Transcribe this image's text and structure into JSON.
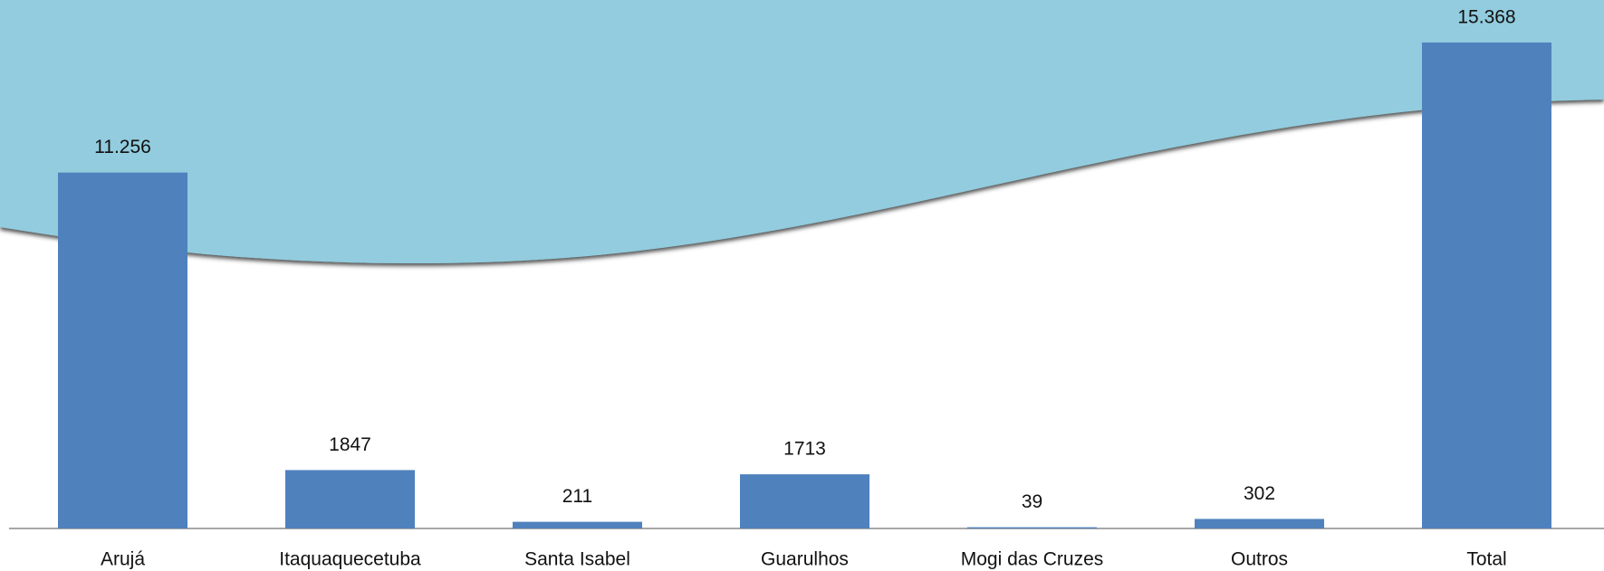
{
  "chart_data": {
    "type": "bar",
    "categories": [
      "Arujá",
      "Itaquaquecetuba",
      "Santa Isabel",
      "Guarulhos",
      "Mogi das Cruzes",
      "Outros",
      "Total"
    ],
    "values": [
      11256,
      1847,
      211,
      1713,
      39,
      302,
      15368
    ],
    "value_labels": [
      "11.256",
      "1847",
      "211",
      "1713",
      "39",
      "302",
      "15.368"
    ],
    "color": "#4f81bd"
  }
}
